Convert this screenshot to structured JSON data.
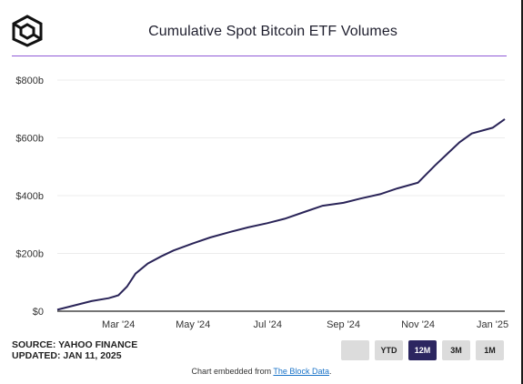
{
  "header": {
    "title": "Cumulative Spot Bitcoin ETF Volumes"
  },
  "colors": {
    "line": "#2a2458",
    "accent_rule": "#8f5bd6",
    "active_button": "#2c2660"
  },
  "chart_data": {
    "type": "line",
    "title": "Cumulative Spot Bitcoin ETF Volumes",
    "xlabel": "",
    "ylabel": "",
    "y_unit": "billion USD",
    "ylim": [
      0,
      800
    ],
    "xlim": [
      "2024-01-11",
      "2025-01-11"
    ],
    "grid": true,
    "y_ticks": [
      {
        "value": 0,
        "label": "$0"
      },
      {
        "value": 200,
        "label": "$200b"
      },
      {
        "value": 400,
        "label": "$400b"
      },
      {
        "value": 600,
        "label": "$600b"
      },
      {
        "value": 800,
        "label": "$800b"
      }
    ],
    "x_ticks": [
      {
        "date": "2024-03-01",
        "label": "Mar '24"
      },
      {
        "date": "2024-05-01",
        "label": "May '24"
      },
      {
        "date": "2024-07-01",
        "label": "Jul '24"
      },
      {
        "date": "2024-09-01",
        "label": "Sep '24"
      },
      {
        "date": "2024-11-01",
        "label": "Nov '24"
      },
      {
        "date": "2025-01-01",
        "label": "Jan '25"
      }
    ],
    "series": [
      {
        "x": [
          "2024-01-11",
          "2024-01-25",
          "2024-02-08",
          "2024-02-22",
          "2024-03-01",
          "2024-03-08",
          "2024-03-15",
          "2024-03-25",
          "2024-04-05",
          "2024-04-15",
          "2024-05-01",
          "2024-05-15",
          "2024-06-01",
          "2024-06-15",
          "2024-07-01",
          "2024-07-15",
          "2024-08-01",
          "2024-08-15",
          "2024-09-01",
          "2024-09-15",
          "2024-10-01",
          "2024-10-15",
          "2024-11-01",
          "2024-11-08",
          "2024-11-15",
          "2024-11-25",
          "2024-12-05",
          "2024-12-15",
          "2025-01-01",
          "2025-01-11"
        ],
        "values": [
          5,
          20,
          35,
          45,
          55,
          85,
          130,
          165,
          190,
          210,
          235,
          255,
          275,
          290,
          305,
          320,
          345,
          365,
          375,
          390,
          405,
          425,
          445,
          475,
          505,
          545,
          585,
          615,
          635,
          665
        ]
      }
    ]
  },
  "footer": {
    "source_line": "SOURCE: YAHOO FINANCE",
    "updated_line": "UPDATED: JAN 11, 2025",
    "embed_prefix": "Chart embedded from ",
    "embed_link": "The Block Data",
    "embed_suffix": "."
  },
  "range_buttons": [
    {
      "label": ""
    },
    {
      "label": "YTD"
    },
    {
      "label": "12M",
      "active": true
    },
    {
      "label": "3M"
    },
    {
      "label": "1M"
    }
  ]
}
